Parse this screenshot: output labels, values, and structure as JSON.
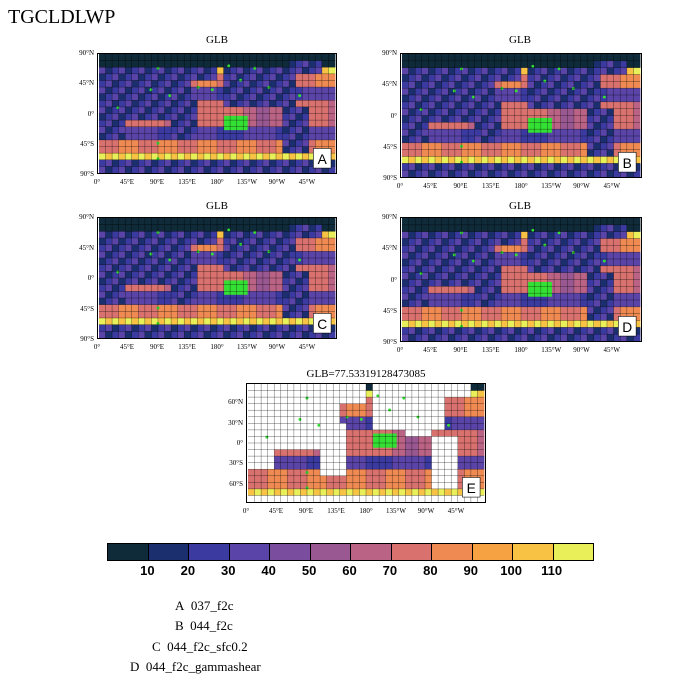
{
  "title": "TGCLDLWP",
  "panels": [
    {
      "title": "GLB",
      "letter": "A"
    },
    {
      "title": "GLB",
      "letter": "B"
    },
    {
      "title": "GLB",
      "letter": "C"
    },
    {
      "title": "GLB",
      "letter": "D"
    },
    {
      "title": "GLB=77.53319128473085",
      "letter": "E"
    }
  ],
  "lat_labels": [
    "90°N",
    "45°N",
    "0°",
    "45°S",
    "90°S"
  ],
  "lat_labels_e": [
    "60°N",
    "30°N",
    "0°",
    "30°S",
    "60°S"
  ],
  "lon_labels": [
    "0°",
    "45°E",
    "90°E",
    "135°E",
    "180°",
    "135°W",
    "90°W",
    "45°W"
  ],
  "colorbar": {
    "colors": [
      "#0f2a38",
      "#1b2f6e",
      "#3a3aa0",
      "#5a44a8",
      "#7a4d9e",
      "#9a5892",
      "#bb6384",
      "#d9716e",
      "#ef8a52",
      "#f7a242",
      "#f8c244",
      "#e8ef58"
    ],
    "labels": [
      "10",
      "20",
      "30",
      "40",
      "50",
      "60",
      "70",
      "80",
      "90",
      "100",
      "110"
    ]
  },
  "legend": [
    {
      "key": "A",
      "text": "037_f2c"
    },
    {
      "key": "B",
      "text": "044_f2c"
    },
    {
      "key": "C",
      "text": "044_f2c_sfc0.2"
    },
    {
      "key": "D",
      "text": "044_f2c_gammashear"
    }
  ]
}
